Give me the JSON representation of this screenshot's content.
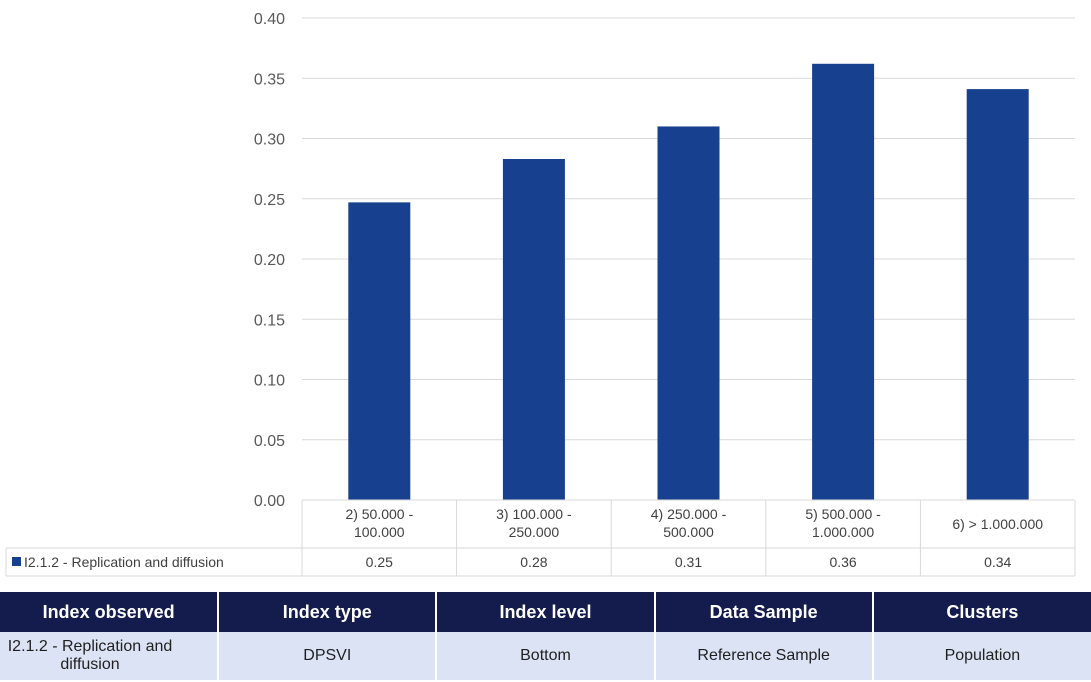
{
  "chart_data": {
    "type": "bar",
    "categories": [
      [
        "2) 50.000 -",
        "100.000"
      ],
      [
        "3) 100.000 -",
        "250.000"
      ],
      [
        "4) 250.000 -",
        "500.000"
      ],
      [
        "5) 500.000 -",
        "1.000.000"
      ],
      [
        "6)  > 1.000.000"
      ]
    ],
    "series": [
      {
        "name": "I2.1.2 - Replication and diffusion",
        "values": [
          0.247,
          0.283,
          0.31,
          0.362,
          0.341
        ],
        "color": "#17408f"
      }
    ],
    "table_values": [
      "0.25",
      "0.28",
      "0.31",
      "0.36",
      "0.34"
    ],
    "ylim": [
      0,
      0.4
    ],
    "yticks": [
      "0.00",
      "0.05",
      "0.10",
      "0.15",
      "0.20",
      "0.25",
      "0.30",
      "0.35",
      "0.40"
    ],
    "grid": true,
    "legend_position": "bottom-left, in data table",
    "gridline_color": "#d9d9d9"
  },
  "info_table": {
    "headers": [
      "Index observed",
      "Index type",
      "Index level",
      "Data Sample",
      "Clusters"
    ],
    "row": [
      "I2.1.2 - Replication and diffusion",
      "DPSVI",
      "Bottom",
      "Reference Sample",
      "Population"
    ],
    "header_bg": "#141b4d",
    "row_bg": "#dce3f5"
  }
}
